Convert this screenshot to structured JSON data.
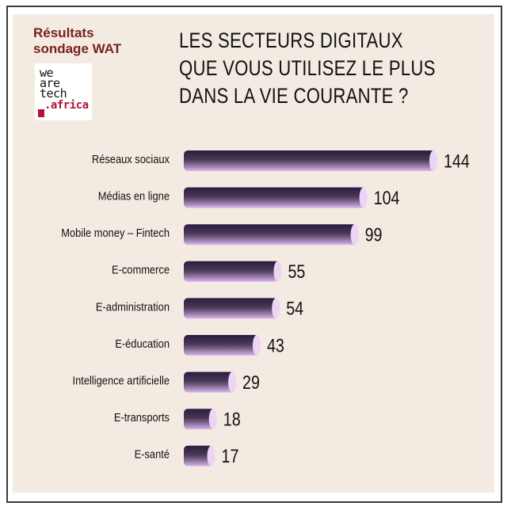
{
  "header": {
    "source_line1": "Résultats",
    "source_line2": "sondage WAT",
    "source_color": "#7a1f1f",
    "logo": {
      "line1": "we",
      "line2": "are",
      "line3": "tech",
      "line4": ".africa",
      "accent_color": "#b3123a"
    },
    "title_line1": "LES SECTEURS DIGITAUX",
    "title_line2": "QUE VOUS UTILISEZ LE PLUS",
    "title_line3": "DANS LA VIE COURANTE ?",
    "title_color": "#111111"
  },
  "chart_data": {
    "type": "bar",
    "orientation": "horizontal",
    "title": "LES SECTEURS DIGITAUX QUE VOUS UTILISEZ LE PLUS DANS LA VIE COURANTE ?",
    "categories": [
      "Réseaux sociaux",
      "Médias en ligne",
      "Mobile money – Fintech",
      "E-commerce",
      "E-administration",
      "E-éducation",
      "Intelligence artificielle",
      "E-transports",
      "E-santé"
    ],
    "values": [
      144,
      104,
      99,
      55,
      54,
      43,
      29,
      18,
      17
    ],
    "xlabel": "",
    "ylabel": "",
    "xlim": [
      0,
      144
    ],
    "grid": false,
    "legend": "none",
    "colors": {
      "bar_top": "#2c1b3f",
      "bar_bottom": "#dcb8f0",
      "bar_end": "#ecd4f7",
      "label": "#111111",
      "value": "#111111"
    }
  }
}
